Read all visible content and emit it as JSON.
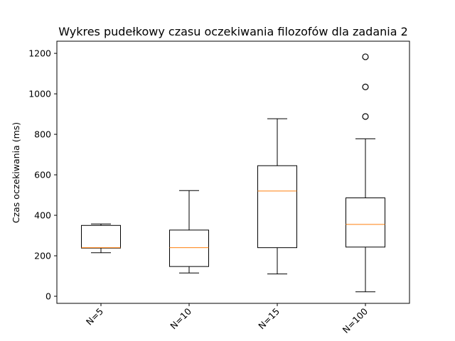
{
  "chart_data": {
    "type": "boxplot",
    "title": "Wykres pudełkowy czasu oczekiwania filozofów dla zadania 2",
    "xlabel": "",
    "ylabel": "Czas oczekiwania (ms)",
    "ylim": [
      -35,
      1260
    ],
    "yticks": [
      0,
      200,
      400,
      600,
      800,
      1000,
      1200
    ],
    "categories": [
      "N=5",
      "N=10",
      "N=15",
      "N=100"
    ],
    "boxes": [
      {
        "category": "N=5",
        "whisker_low": 215,
        "q1": 238,
        "median": 240,
        "q3": 350,
        "whisker_high": 357,
        "outliers": []
      },
      {
        "category": "N=10",
        "whisker_low": 115,
        "q1": 147,
        "median": 240,
        "q3": 327,
        "whisker_high": 522,
        "outliers": []
      },
      {
        "category": "N=15",
        "whisker_low": 110,
        "q1": 240,
        "median": 520,
        "q3": 645,
        "whisker_high": 877,
        "outliers": []
      },
      {
        "category": "N=100",
        "whisker_low": 22,
        "q1": 243,
        "median": 355,
        "q3": 486,
        "whisker_high": 778,
        "outliers": [
          888,
          1034,
          1183
        ]
      }
    ],
    "grid": false,
    "colors": {
      "box": "#000000",
      "median": "#ff7f0e",
      "background": "#ffffff"
    }
  }
}
